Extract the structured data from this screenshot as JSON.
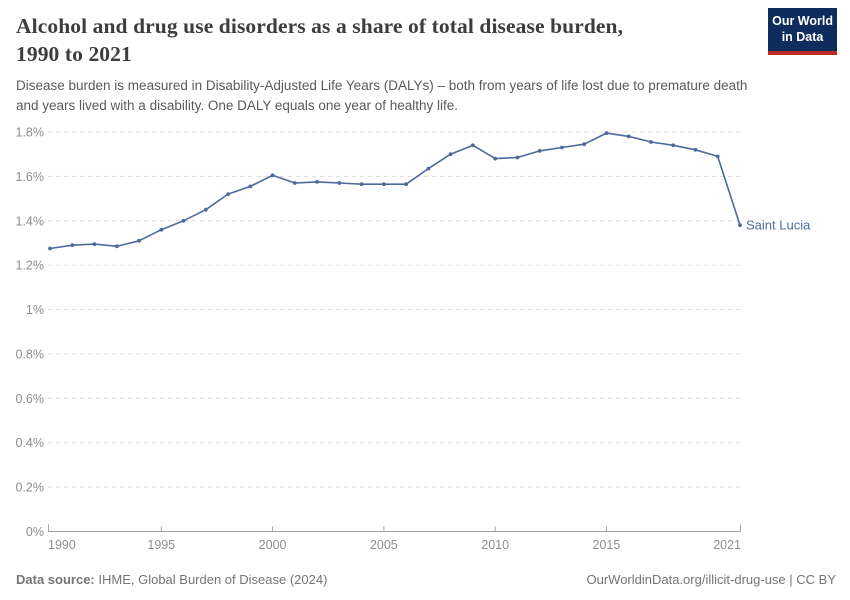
{
  "header": {
    "title_lines": [
      "Alcohol and drug use disorders as a share of total disease burden,",
      "1990 to 2021"
    ],
    "subtitle_lines": [
      "Disease burden is measured in Disability-Adjusted Life Years (DALYs) – both from years of life lost due to premature death",
      "and years lived with a disability. One DALY equals one year of healthy life."
    ],
    "logo": {
      "line1": "Our World",
      "line2": "in Data"
    }
  },
  "chart_data": {
    "type": "line",
    "title": "Alcohol and drug use disorders as a share of total disease burden, 1990 to 2021",
    "entity": "Saint Lucia",
    "unit": "%",
    "grid": true,
    "x": [
      1990,
      1991,
      1992,
      1993,
      1994,
      1995,
      1996,
      1997,
      1998,
      1999,
      2000,
      2001,
      2002,
      2003,
      2004,
      2005,
      2006,
      2007,
      2008,
      2009,
      2010,
      2011,
      2012,
      2013,
      2014,
      2015,
      2016,
      2017,
      2018,
      2019,
      2020,
      2021
    ],
    "values": [
      1.275,
      1.29,
      1.295,
      1.285,
      1.31,
      1.36,
      1.4,
      1.45,
      1.52,
      1.555,
      1.605,
      1.57,
      1.575,
      1.57,
      1.565,
      1.565,
      1.565,
      1.635,
      1.7,
      1.74,
      1.68,
      1.685,
      1.715,
      1.73,
      1.745,
      1.795,
      1.78,
      1.755,
      1.74,
      1.72,
      1.69,
      1.38
    ],
    "xlim": [
      1990,
      2021
    ],
    "ylim": [
      0,
      1.8
    ],
    "xticks": [
      1990,
      1995,
      2000,
      2005,
      2010,
      2015,
      2021
    ],
    "yticks": [
      0,
      0.2,
      0.4,
      0.6,
      0.8,
      1,
      1.2,
      1.4,
      1.6,
      1.8
    ],
    "ytick_labels": [
      "0%",
      "0.2%",
      "0.4%",
      "0.6%",
      "0.8%",
      "1%",
      "1.2%",
      "1.4%",
      "1.6%",
      "1.8%"
    ]
  },
  "colors": {
    "line": "#4C6A9C",
    "entity_label": "#4C6A9C",
    "grid": "#dcdcdc",
    "axis": "#a3a3a3",
    "tick_label": "#8e8e8e",
    "title": "#3d3d3d",
    "subtitle": "#5a5a5a",
    "footer": "#757575",
    "logo_bg": "#0f2d5c",
    "logo_red": "#bb2a25"
  },
  "footer": {
    "source_label": "Data source:",
    "source_text": " IHME, Global Burden of Disease (2024)",
    "url_text": "OurWorldinData.org/illicit-drug-use",
    "license_text": " | CC BY"
  }
}
